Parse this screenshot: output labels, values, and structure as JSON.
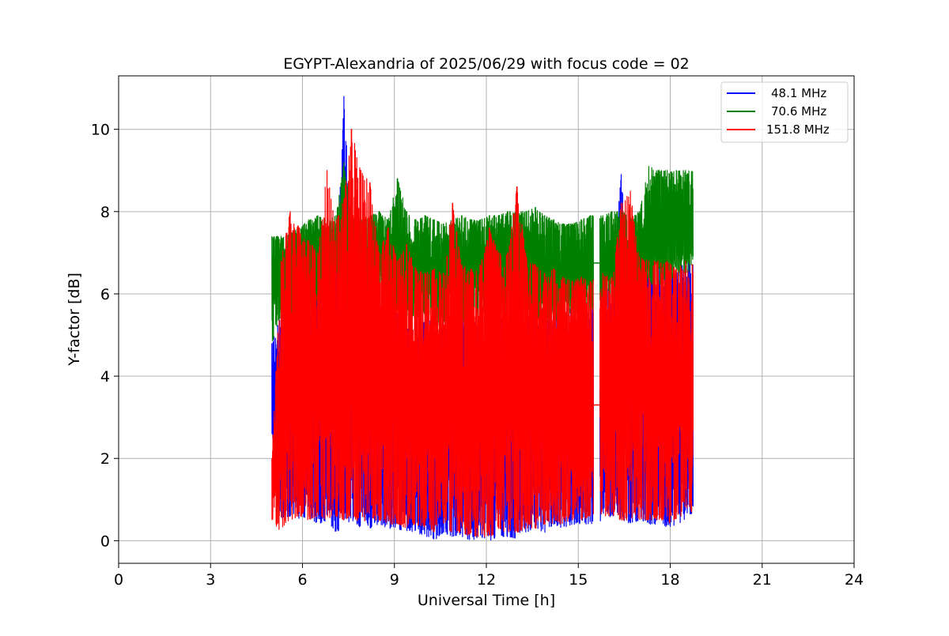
{
  "chart_data": {
    "type": "line",
    "title": "EGYPT-Alexandria of 2025/06/29 with focus code = 02",
    "xlabel": "Universal Time [h]",
    "ylabel": "Y-factor [dB]",
    "xlim": [
      0,
      24
    ],
    "ylim": [
      -0.55,
      11.3
    ],
    "xticks": [
      0,
      3,
      6,
      9,
      12,
      15,
      18,
      21,
      24
    ],
    "yticks": [
      0,
      2,
      4,
      6,
      8,
      10
    ],
    "grid": true,
    "legend_position": "top-right",
    "data_gap": [
      15.5,
      15.7
    ],
    "series": [
      {
        "name": "48.1 MHz",
        "color": "#0000ff",
        "x": [
          5.0,
          5.3,
          5.6,
          5.9,
          6.2,
          6.5,
          6.8,
          7.1,
          7.35,
          7.6,
          7.9,
          8.2,
          8.5,
          8.8,
          9.1,
          9.4,
          9.7,
          10.0,
          10.3,
          10.6,
          10.9,
          11.2,
          11.5,
          11.8,
          12.1,
          12.4,
          12.7,
          13.0,
          13.3,
          13.6,
          13.9,
          14.2,
          14.5,
          14.8,
          15.1,
          15.4,
          15.8,
          16.1,
          16.4,
          16.7,
          17.0,
          17.3,
          17.6,
          17.9,
          18.2,
          18.5,
          18.75
        ],
        "upper": [
          4.8,
          5.5,
          5.8,
          6.0,
          5.6,
          5.9,
          6.1,
          6.2,
          10.8,
          7.4,
          6.0,
          5.8,
          5.7,
          5.9,
          5.5,
          5.6,
          5.4,
          5.3,
          5.4,
          5.2,
          5.3,
          5.4,
          5.5,
          5.2,
          5.4,
          5.5,
          5.3,
          5.6,
          5.5,
          5.4,
          5.3,
          5.5,
          5.6,
          5.7,
          5.5,
          5.6,
          6.0,
          6.2,
          8.9,
          6.0,
          6.2,
          6.7,
          6.8,
          6.6,
          6.5,
          6.8,
          6.7
        ],
        "lower": [
          2.6,
          0.5,
          0.6,
          0.5,
          0.6,
          0.4,
          0.5,
          0.2,
          0.3,
          0.4,
          0.3,
          0.3,
          0.4,
          0.3,
          0.3,
          0.2,
          0.2,
          0.1,
          0.0,
          0.2,
          0.1,
          0.1,
          0.0,
          0.1,
          0.0,
          0.1,
          0.1,
          0.05,
          0.2,
          0.3,
          0.2,
          0.4,
          0.3,
          0.4,
          0.4,
          0.4,
          0.5,
          0.6,
          0.5,
          0.4,
          0.5,
          0.4,
          0.4,
          0.3,
          0.4,
          0.5,
          0.7
        ]
      },
      {
        "name": "70.6 MHz",
        "color": "#008000",
        "x": [
          5.0,
          5.3,
          5.6,
          5.9,
          6.2,
          6.5,
          6.8,
          7.1,
          7.35,
          7.6,
          7.9,
          8.2,
          8.5,
          8.8,
          9.1,
          9.4,
          9.7,
          10.0,
          10.3,
          10.6,
          10.9,
          11.2,
          11.5,
          11.8,
          12.1,
          12.4,
          12.7,
          13.0,
          13.3,
          13.6,
          13.9,
          14.2,
          14.5,
          14.8,
          15.1,
          15.4,
          15.8,
          16.1,
          16.4,
          16.7,
          17.0,
          17.3,
          17.6,
          17.9,
          18.2,
          18.5,
          18.75
        ],
        "upper": [
          7.4,
          7.4,
          7.5,
          7.6,
          7.8,
          7.9,
          7.8,
          7.9,
          9.2,
          7.9,
          7.8,
          7.9,
          8.0,
          7.8,
          8.8,
          8.0,
          7.8,
          7.9,
          7.8,
          7.7,
          7.8,
          7.9,
          7.8,
          7.8,
          7.9,
          7.9,
          8.0,
          8.0,
          8.0,
          8.1,
          7.9,
          7.8,
          7.7,
          7.7,
          7.8,
          7.9,
          7.9,
          8.0,
          8.0,
          7.9,
          8.0,
          9.1,
          9.0,
          9.0,
          9.0,
          9.0,
          9.0
        ],
        "lower": [
          4.8,
          5.5,
          5.4,
          5.3,
          5.5,
          5.6,
          5.4,
          5.5,
          5.3,
          5.5,
          5.4,
          5.3,
          5.5,
          5.4,
          5.5,
          5.3,
          5.4,
          5.5,
          5.2,
          5.3,
          5.4,
          5.2,
          5.5,
          5.4,
          5.5,
          5.5,
          5.5,
          5.6,
          5.5,
          5.4,
          5.3,
          5.4,
          5.3,
          5.5,
          5.6,
          5.6,
          5.8,
          5.6,
          5.8,
          5.6,
          5.8,
          6.2,
          6.2,
          6.3,
          6.4,
          6.5,
          6.6
        ],
        "gap_line_y": 6.75
      },
      {
        "name": "151.8 MHz",
        "color": "#ff0000",
        "x": [
          5.0,
          5.3,
          5.6,
          5.9,
          6.2,
          6.5,
          6.8,
          7.1,
          7.35,
          7.6,
          7.9,
          8.2,
          8.5,
          8.8,
          9.1,
          9.4,
          9.7,
          10.0,
          10.3,
          10.6,
          10.9,
          11.2,
          11.5,
          11.8,
          12.1,
          12.4,
          12.7,
          13.0,
          13.3,
          13.6,
          13.9,
          14.2,
          14.5,
          14.8,
          15.1,
          15.4,
          15.8,
          16.1,
          16.4,
          16.7,
          17.0,
          17.3,
          17.6,
          17.9,
          18.2,
          18.5,
          18.75
        ],
        "upper": [
          2.0,
          6.8,
          8.0,
          7.6,
          7.3,
          7.0,
          9.0,
          7.8,
          8.3,
          10.0,
          9.0,
          8.7,
          7.0,
          7.6,
          6.8,
          7.2,
          6.6,
          6.5,
          6.6,
          6.5,
          8.2,
          6.7,
          6.6,
          6.7,
          7.6,
          7.0,
          7.0,
          8.6,
          6.9,
          6.7,
          6.5,
          6.6,
          6.4,
          6.3,
          6.4,
          6.3,
          6.5,
          6.4,
          8.2,
          8.5,
          6.9,
          6.8,
          6.8,
          6.8,
          6.6,
          6.8,
          6.7
        ],
        "lower": [
          0.5,
          0.2,
          0.5,
          0.6,
          0.5,
          0.6,
          0.5,
          0.6,
          0.5,
          0.6,
          0.4,
          0.5,
          0.5,
          0.4,
          0.4,
          0.3,
          0.4,
          0.3,
          0.2,
          0.3,
          0.2,
          0.2,
          0.1,
          0.1,
          0.1,
          0.2,
          0.2,
          0.2,
          0.3,
          0.3,
          0.4,
          0.4,
          0.4,
          0.5,
          0.5,
          0.6,
          0.6,
          0.6,
          0.5,
          0.5,
          0.5,
          0.5,
          0.5,
          0.4,
          0.5,
          0.6,
          0.7
        ],
        "gap_line_y": 3.3
      }
    ]
  }
}
